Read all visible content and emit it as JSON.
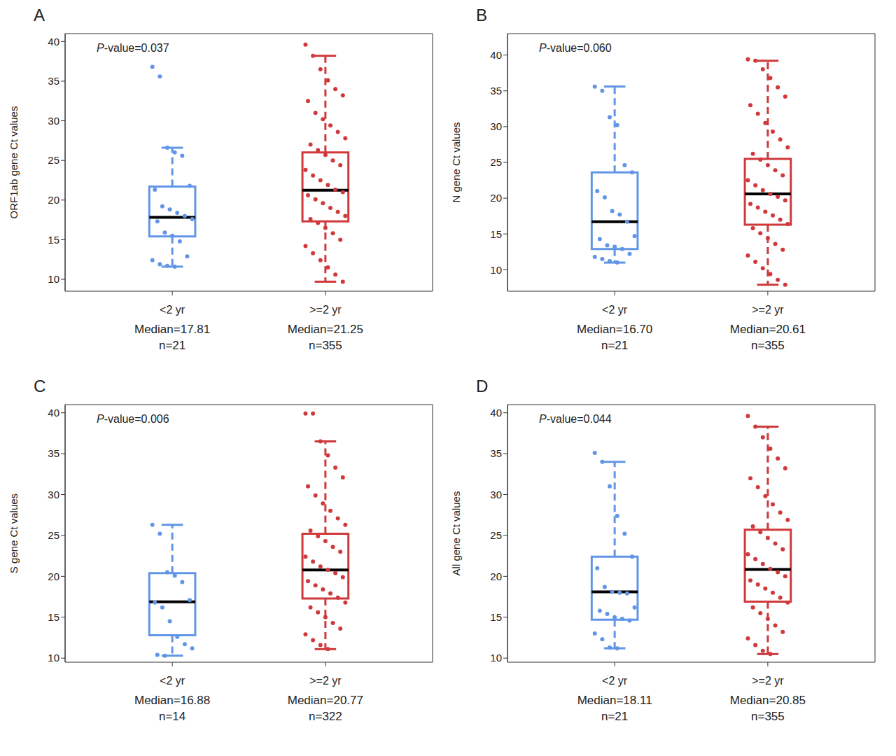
{
  "chart_data": [
    {
      "type": "box",
      "panel": "A",
      "annotation": "P-value=0.037",
      "ylabel": "ORF1ab gene Ct values",
      "ylim": [
        8.5,
        41
      ],
      "yticks": [
        10,
        15,
        20,
        25,
        30,
        35,
        40
      ],
      "series": [
        {
          "name": "<2 yr",
          "color": "#6195e6",
          "whisker_low": 11.6,
          "q1": 15.4,
          "median": 17.81,
          "q3": 21.7,
          "whisker_high": 26.6,
          "labels": [
            "Median=17.81",
            "n=21"
          ],
          "points": [
            36.8,
            35.6,
            26.6,
            26.0,
            25.6,
            21.8,
            21.3,
            19.2,
            18.8,
            18.4,
            18.0,
            17.6,
            17.3,
            15.9,
            15.5,
            14.8,
            12.9,
            12.4,
            11.9,
            11.7,
            11.6
          ]
        },
        {
          "name": ">=2 yr",
          "color": "#d0393b",
          "whisker_low": 9.7,
          "q1": 17.3,
          "median": 21.25,
          "q3": 26.0,
          "whisker_high": 38.2,
          "labels": [
            "Median=21.25",
            "n=355"
          ],
          "points": [
            39.6,
            38.2,
            36.5,
            35.1,
            34.0,
            33.2,
            32.5,
            31.0,
            30.2,
            29.4,
            28.6,
            27.8,
            27.0,
            26.3,
            25.7,
            25.0,
            24.4,
            23.8,
            23.1,
            22.5,
            21.9,
            21.3,
            21.0,
            20.6,
            20.1,
            19.6,
            19.0,
            18.5,
            18.0,
            17.6,
            17.1,
            16.5,
            15.8,
            15.0,
            14.2,
            13.3,
            12.4,
            11.5,
            10.6,
            9.7
          ]
        }
      ]
    },
    {
      "type": "box",
      "panel": "B",
      "annotation": "P-value=0.060",
      "ylabel": "N gene Ct values",
      "ylim": [
        7,
        43
      ],
      "yticks": [
        10,
        15,
        20,
        25,
        30,
        35,
        40
      ],
      "series": [
        {
          "name": "<2 yr",
          "color": "#6195e6",
          "whisker_low": 11.0,
          "q1": 12.9,
          "median": 16.7,
          "q3": 23.6,
          "whisker_high": 35.6,
          "labels": [
            "Median=16.70",
            "n=21"
          ],
          "points": [
            35.6,
            35.0,
            31.3,
            30.2,
            24.6,
            23.6,
            21.0,
            20.1,
            18.2,
            17.7,
            16.7,
            14.7,
            14.3,
            13.4,
            13.2,
            12.9,
            12.2,
            11.8,
            11.5,
            11.2,
            11.0
          ]
        },
        {
          "name": ">=2 yr",
          "color": "#d0393b",
          "whisker_low": 7.9,
          "q1": 16.3,
          "median": 20.61,
          "q3": 25.5,
          "whisker_high": 39.2,
          "labels": [
            "Median=20.61",
            "n=355"
          ],
          "points": [
            39.4,
            39.2,
            38.0,
            36.8,
            35.5,
            34.2,
            33.0,
            31.8,
            30.5,
            29.3,
            28.2,
            27.1,
            26.2,
            25.4,
            24.6,
            23.9,
            23.2,
            22.5,
            21.8,
            21.1,
            20.6,
            20.2,
            19.7,
            19.2,
            18.7,
            18.1,
            17.6,
            17.0,
            16.4,
            15.8,
            15.1,
            14.4,
            13.6,
            12.8,
            12.0,
            11.1,
            10.2,
            9.4,
            8.6,
            7.9
          ]
        }
      ]
    },
    {
      "type": "box",
      "panel": "C",
      "annotation": "P-value=0.006",
      "ylabel": "S gene Ct values",
      "ylim": [
        9.5,
        41
      ],
      "yticks": [
        10,
        15,
        20,
        25,
        30,
        35,
        40
      ],
      "series": [
        {
          "name": "<2 yr",
          "color": "#6195e6",
          "whisker_low": 10.3,
          "q1": 12.8,
          "median": 16.88,
          "q3": 20.4,
          "whisker_high": 26.3,
          "labels": [
            "Median=16.88",
            "n=14"
          ],
          "points": [
            26.3,
            25.2,
            20.5,
            20.1,
            19.3,
            17.1,
            16.8,
            16.2,
            14.5,
            12.6,
            11.7,
            11.2,
            10.4,
            10.3
          ]
        },
        {
          "name": ">=2 yr",
          "color": "#d0393b",
          "whisker_low": 11.1,
          "q1": 17.3,
          "median": 20.77,
          "q3": 25.2,
          "whisker_high": 36.5,
          "labels": [
            "Median=20.77",
            "n=322"
          ],
          "points": [
            39.9,
            39.9,
            36.5,
            34.8,
            33.3,
            32.1,
            31.0,
            29.9,
            28.9,
            28.0,
            27.1,
            26.3,
            25.6,
            24.9,
            24.3,
            23.6,
            23.0,
            22.4,
            21.8,
            21.2,
            20.8,
            20.4,
            19.9,
            19.4,
            18.9,
            18.4,
            17.9,
            17.4,
            16.8,
            16.2,
            15.6,
            15.0,
            14.3,
            13.6,
            12.9,
            12.2,
            11.6,
            11.1
          ]
        }
      ]
    },
    {
      "type": "box",
      "panel": "D",
      "annotation": "P-value=0.044",
      "ylabel": "All gene Ct values",
      "ylim": [
        9.5,
        41
      ],
      "yticks": [
        10,
        15,
        20,
        25,
        30,
        35,
        40
      ],
      "series": [
        {
          "name": "<2 yr",
          "color": "#6195e6",
          "whisker_low": 11.2,
          "q1": 14.7,
          "median": 18.11,
          "q3": 22.4,
          "whisker_high": 34.0,
          "labels": [
            "Median=18.11",
            "n=21"
          ],
          "points": [
            35.1,
            34.0,
            31.0,
            27.4,
            25.2,
            22.4,
            21.0,
            18.7,
            18.1,
            18.0,
            17.9,
            16.2,
            15.8,
            15.4,
            15.0,
            14.8,
            14.6,
            13.0,
            12.3,
            11.3,
            11.2
          ]
        },
        {
          "name": ">=2 yr",
          "color": "#d0393b",
          "whisker_low": 10.5,
          "q1": 16.9,
          "median": 20.85,
          "q3": 25.7,
          "whisker_high": 38.3,
          "labels": [
            "Median=20.85",
            "n=355"
          ],
          "points": [
            39.6,
            38.3,
            37.0,
            35.6,
            34.4,
            33.2,
            32.0,
            30.9,
            29.8,
            28.8,
            27.8,
            26.9,
            26.1,
            25.4,
            24.7,
            24.0,
            23.3,
            22.7,
            22.1,
            21.5,
            20.9,
            20.5,
            20.0,
            19.5,
            19.0,
            18.5,
            18.0,
            17.4,
            16.8,
            16.2,
            15.5,
            14.8,
            14.0,
            13.2,
            12.4,
            11.6,
            10.9,
            10.5
          ]
        }
      ]
    }
  ]
}
